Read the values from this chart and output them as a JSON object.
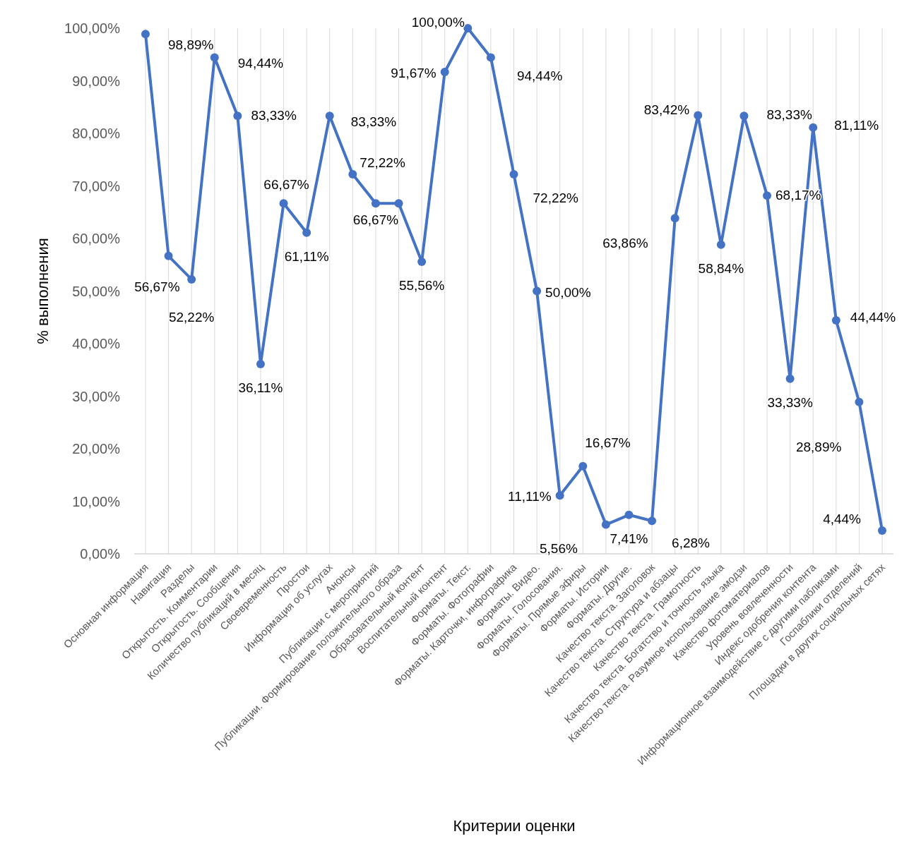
{
  "chart_data": {
    "type": "line",
    "xlabel": "Критерии оценки",
    "ylabel": "%  выполнения",
    "categories": [
      "Основная информация",
      "Навигация",
      "Разделы",
      "Открытость. Комментарии",
      "Открытость. Сообщения",
      "Количество публикаций в месяц",
      "Своевременность",
      "Простои",
      "Информация об услугах",
      "Анонсы",
      "Публикации с мероприятий",
      "Публикации. Формирование положительного образа",
      "Образовательный контент",
      "Воспитательный контент",
      "Форматы. Текст.",
      "Форматы. Фотографии",
      "Форматы. Карточки, инфографика",
      "Форматы. Видео.",
      "Форматы. Голосования.",
      "Форматы. Прямые эфиры",
      "Форматы. Истории",
      "Форматы. Другие.",
      "Качество текста. Заголовок",
      "Качество текста. Структура и абзацы",
      "Качество текста. Грамотность",
      "Качество текста. Богатство и точность языка",
      "Качество текста. Разумное использование эмодзи",
      "Качество фотоматериалов",
      "Уровень вовлеченности",
      "Индекс одобрения контента",
      "Информационное взаимодействие с другими пабликами",
      "Госпаблики отделений",
      "Площадки в других социальных сетях"
    ],
    "series": [
      {
        "color": "#4472c4",
        "values": [
          98.89,
          56.67,
          52.22,
          94.44,
          83.33,
          36.11,
          66.67,
          61.11,
          83.33,
          72.22,
          66.67,
          66.67,
          55.56,
          91.67,
          100.0,
          94.44,
          72.22,
          50.0,
          11.11,
          16.67,
          5.56,
          7.41,
          6.28,
          63.86,
          83.42,
          58.84,
          83.33,
          68.17,
          33.33,
          81.11,
          44.44,
          28.89,
          4.44
        ],
        "value_labels": [
          "98,89%",
          "56,67%",
          "52,22%",
          "94,44%",
          "83,33%",
          "36,11%",
          "66,67%",
          "61,11%",
          "83,33%",
          "72,22%",
          "66,67%",
          null,
          "55,56%",
          "91,67%",
          "100,00%",
          "94,44%",
          "72,22%",
          "50,00%",
          "11,11%",
          "16,67%",
          "5,56%",
          "7,41%",
          "6,28%",
          "63,86%",
          "83,42%",
          "58,84%",
          "83,33%",
          "68,17%",
          "33,33%",
          "81,11%",
          "44,44%",
          "28,89%",
          "4,44%"
        ]
      }
    ],
    "ylim": [
      0,
      100
    ],
    "yticks": [
      {
        "value": 0,
        "label": "0,00%"
      },
      {
        "value": 10,
        "label": "10,00%"
      },
      {
        "value": 20,
        "label": "20,00%"
      },
      {
        "value": 30,
        "label": "30,00%"
      },
      {
        "value": 40,
        "label": "40,00%"
      },
      {
        "value": 50,
        "label": "50,00%"
      },
      {
        "value": 60,
        "label": "60,00%"
      },
      {
        "value": 70,
        "label": "70,00%"
      },
      {
        "value": 80,
        "label": "80,00%"
      },
      {
        "value": 90,
        "label": "90,00%"
      },
      {
        "value": 100,
        "label": "100,00%"
      }
    ],
    "grid": "x",
    "marker": "circle",
    "line_style": "solid"
  }
}
